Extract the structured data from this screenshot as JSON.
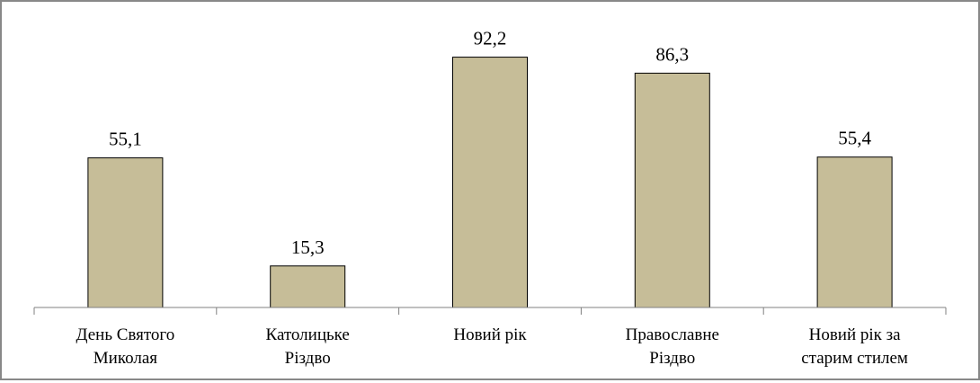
{
  "chart_data": {
    "type": "bar",
    "title": "",
    "xlabel": "",
    "ylabel": "",
    "categories": [
      [
        "День Святого",
        "Миколая"
      ],
      [
        "Католицьке",
        "Різдво"
      ],
      [
        "Новий рік"
      ],
      [
        "Православне",
        "Різдво"
      ],
      [
        "Новий рік за",
        "старим стилем"
      ]
    ],
    "values": [
      55.1,
      15.3,
      92.2,
      86.3,
      55.4
    ],
    "value_labels": [
      "55,1",
      "15,3",
      "92,2",
      "86,3",
      "55,4"
    ],
    "ylim": [
      0,
      100
    ],
    "grid": false,
    "legend": "none",
    "colors": {
      "bar_fill": "#c6bd98",
      "bar_stroke": "#000000",
      "axis": "#808080",
      "frame": "#888888"
    }
  }
}
